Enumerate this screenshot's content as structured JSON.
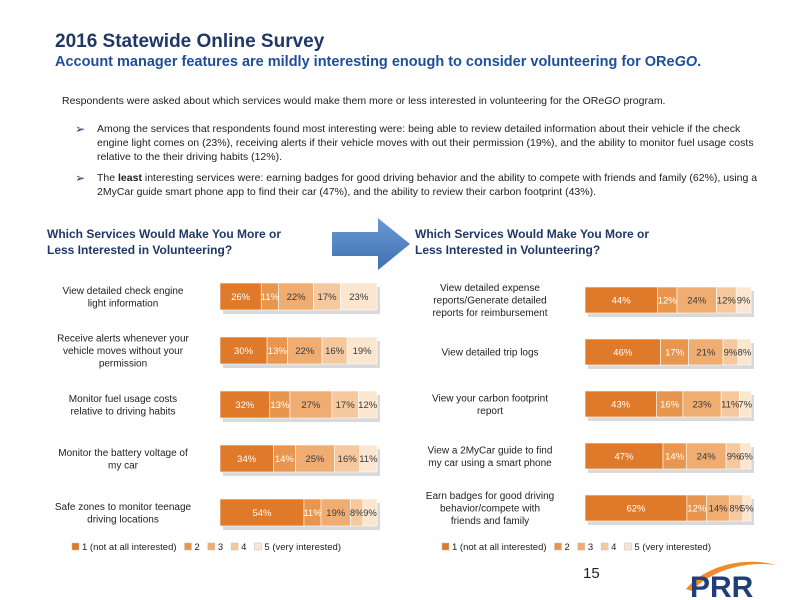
{
  "header": {
    "title": "2016 Statewide Online Survey",
    "subtitle_plain": "Account manager features are mildly interesting enough to consider volunteering for ",
    "subtitle_brand_ore": "ORe",
    "subtitle_brand_go": "GO",
    "subtitle_end": "."
  },
  "intro": {
    "text": "Respondents were asked about which services would make them more or less interested in volunteering for the ORe",
    "brand_go": "GO",
    "text_end": " program."
  },
  "bullets": {
    "b1": "Among the services that respondents found most interesting were: being able to review detailed information about their vehicle if the check engine light comes on (23%), receiving alerts if their vehicle moves with out their permission (19%), and the ability to monitor fuel usage costs relative to the their driving habits (12%).",
    "b2_pre": "The ",
    "b2_bold": "least",
    "b2_post": " interesting services were: earning badges for good driving behavior and the ability to compete with friends and family (62%), using a 2MyCar guide smart phone app to find their car (47%), and the ability to review their carbon footprint (43%)."
  },
  "colors": {
    "scale": [
      "#e07a2b",
      "#e8964e",
      "#efad72",
      "#f5c89e",
      "#fbe6cf"
    ],
    "arrow": "#4a7ebb",
    "title": "#1f3864",
    "logo": "#1f3e7a"
  },
  "legend": [
    "1 (not at all interested)",
    "2",
    "3",
    "4",
    "5 (very interested)"
  ],
  "chart_data": [
    {
      "type": "bar",
      "orientation": "horizontal-stacked-100",
      "title": "Which Services Would Make You More or Less Interested in Volunteering?",
      "categories": [
        "View detailed check engine light information",
        "Receive alerts whenever your vehicle moves without your permission",
        "Monitor fuel usage costs relative to driving habits",
        "Monitor the battery voltage of my car",
        "Safe zones to monitor teenage driving locations"
      ],
      "series": [
        {
          "name": "1 (not at all interested)",
          "values": [
            26,
            30,
            32,
            34,
            54
          ]
        },
        {
          "name": "2",
          "values": [
            11,
            13,
            13,
            14,
            11
          ]
        },
        {
          "name": "3",
          "values": [
            22,
            22,
            27,
            25,
            19
          ]
        },
        {
          "name": "4",
          "values": [
            17,
            16,
            17,
            16,
            8
          ]
        },
        {
          "name": "5 (very interested)",
          "values": [
            23,
            19,
            12,
            11,
            9
          ]
        }
      ],
      "legend_position": "bottom"
    },
    {
      "type": "bar",
      "orientation": "horizontal-stacked-100",
      "title": "Which Services Would Make You More or Less Interested in Volunteering?",
      "categories": [
        "View detailed expense reports/Generate detailed reports for reimbursement",
        "View detailed trip logs",
        "View your carbon footprint report",
        "View a 2MyCar guide to find my car using a smart phone",
        "Earn badges for good driving behavior/compete with friends and family"
      ],
      "series": [
        {
          "name": "1 (not at all interested)",
          "values": [
            44,
            46,
            43,
            47,
            62
          ]
        },
        {
          "name": "2",
          "values": [
            12,
            17,
            16,
            14,
            12
          ]
        },
        {
          "name": "3",
          "values": [
            24,
            21,
            23,
            24,
            14
          ]
        },
        {
          "name": "4",
          "values": [
            12,
            9,
            11,
            9,
            8
          ]
        },
        {
          "name": "5 (very interested)",
          "values": [
            9,
            8,
            7,
            6,
            5
          ]
        }
      ],
      "legend_position": "bottom"
    }
  ],
  "footer": {
    "page_number": "15",
    "logo_text": "PRR"
  }
}
